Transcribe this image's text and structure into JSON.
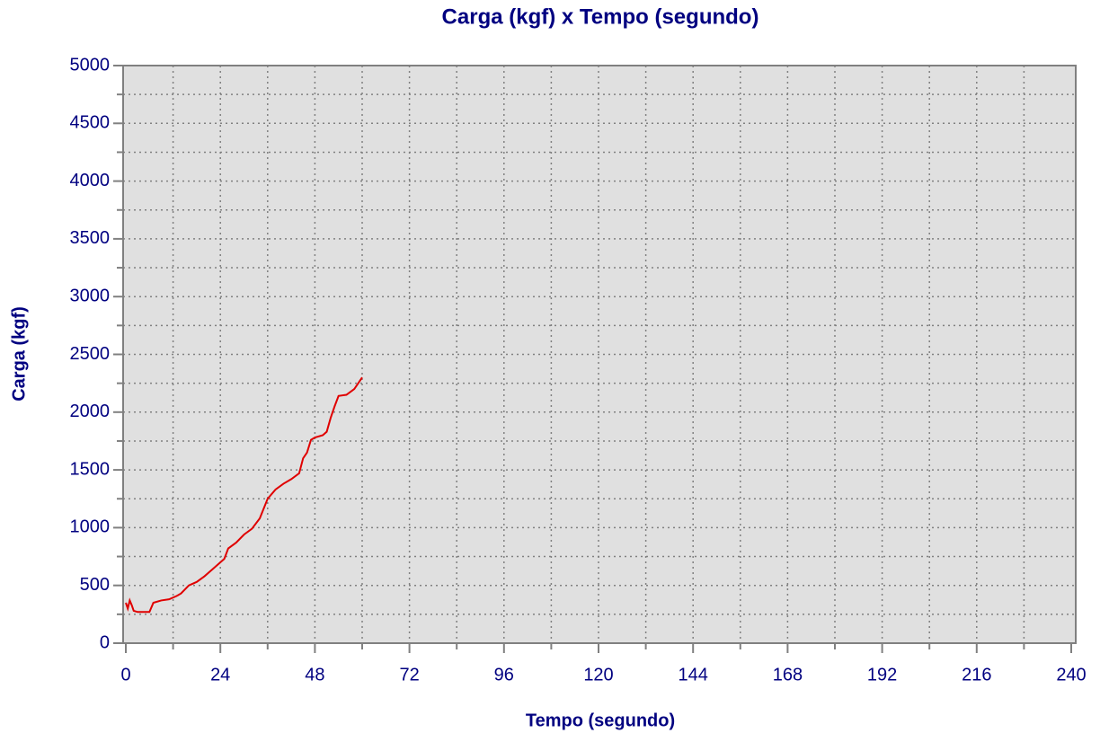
{
  "chart_data": {
    "type": "line",
    "title": "Carga (kgf) x Tempo (segundo)",
    "x_label": "Tempo (segundo)",
    "y_label": "Carga (kgf)",
    "xlim": [
      0,
      240
    ],
    "xticks": [
      0,
      24,
      48,
      72,
      96,
      120,
      144,
      168,
      192,
      216,
      240
    ],
    "ylim": [
      0,
      5000
    ],
    "yticks": [
      0,
      500,
      1000,
      1500,
      2000,
      2500,
      3000,
      3500,
      4000,
      4500,
      5000
    ],
    "grid": true,
    "series": [
      {
        "color": "#e00000",
        "x": [
          0,
          0.5,
          1,
          1.5,
          2,
          3,
          6,
          7,
          9,
          11,
          13,
          14,
          16,
          18,
          20,
          22,
          24,
          25,
          26,
          28,
          30,
          32,
          34,
          36,
          38,
          40,
          42,
          44,
          45,
          46,
          47,
          48,
          50,
          51,
          52,
          53,
          54,
          56,
          58,
          60
        ],
        "values": [
          350,
          300,
          370,
          330,
          280,
          270,
          270,
          350,
          370,
          380,
          410,
          430,
          500,
          530,
          580,
          640,
          700,
          730,
          820,
          870,
          940,
          990,
          1080,
          1250,
          1330,
          1380,
          1420,
          1470,
          1600,
          1650,
          1760,
          1780,
          1800,
          1830,
          1950,
          2050,
          2140,
          2150,
          2200,
          2300
        ]
      }
    ]
  }
}
